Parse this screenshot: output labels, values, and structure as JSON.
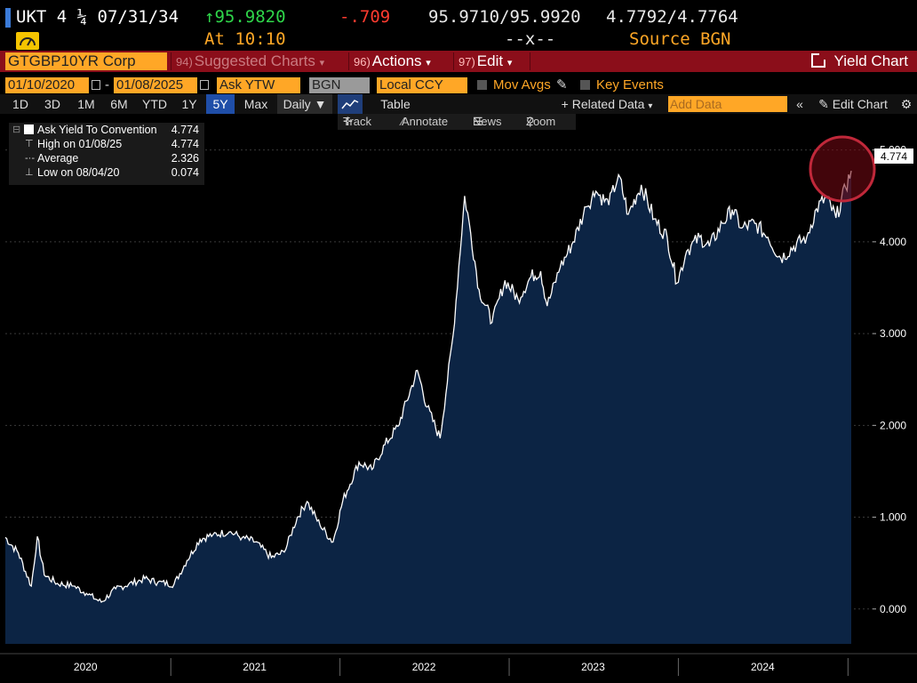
{
  "header": {
    "ticker": "UKT 4 ¼ 07/31/34",
    "price_change_arrow_price": "↑95.9820",
    "net_change": "-.709",
    "bid_ask_price": "95.9710/95.9920",
    "bid_ask_yield": "4.7792/4.7764",
    "time": "At 10:10",
    "spread": "--x--",
    "source": "Source BGN"
  },
  "toolbar": {
    "security": "GTGBP10YR Corp",
    "suggested": {
      "num": "94)",
      "label": "Suggested Charts"
    },
    "actions": {
      "num": "96)",
      "label": "Actions"
    },
    "edit": {
      "num": "97)",
      "label": "Edit"
    },
    "yield_chart": "Yield Chart"
  },
  "params": {
    "start_date": "01/10/2020",
    "end_date": "01/08/2025",
    "field": "Ask YTW",
    "source": "BGN",
    "currency": "Local CCY",
    "mov_avgs": "Mov Avgs",
    "key_events": "Key Events"
  },
  "ranges": [
    "1D",
    "3D",
    "1M",
    "6M",
    "YTD",
    "1Y",
    "5Y",
    "Max"
  ],
  "active_range": "5Y",
  "frequency": "Daily",
  "table_label": "Table",
  "related_data": "Related Data",
  "add_data_placeholder": "Add Data",
  "edit_chart": "Edit Chart",
  "tools": {
    "track": "Track",
    "annotate": "Annotate",
    "news": "News",
    "zoom": "Zoom"
  },
  "legend": {
    "series_name": "Ask Yield To Convention",
    "series_value": "4.774",
    "high_label": "High on 01/08/25",
    "high_value": "4.774",
    "avg_label": "Average",
    "avg_value": "2.326",
    "low_label": "Low on 08/04/20",
    "low_value": "0.074"
  },
  "last_value_tag": "4.774",
  "colors": {
    "fill": "#0c2444",
    "line": "#ffffff",
    "accent_orange": "#ffa726",
    "toolbar_red": "#8b0e1a",
    "highlight_circle": "#c0283a"
  },
  "chart_data": {
    "type": "area",
    "title": "",
    "xlabel": "",
    "ylabel": "",
    "ylim": [
      -0.38,
      5.2
    ],
    "yticks": [
      "5.000",
      "4.000",
      "3.000",
      "2.000",
      "1.000",
      "0.000"
    ],
    "ytick_values": [
      5,
      4,
      3,
      2,
      1,
      0
    ],
    "xticks": [
      "2020",
      "2021",
      "2022",
      "2023",
      "2024"
    ],
    "xtick_values": [
      "2020-07-01",
      "2021-07-01",
      "2022-07-01",
      "2023-07-01",
      "2024-07-01"
    ],
    "xlim": [
      "2020-01-10",
      "2025-01-08"
    ],
    "series": [
      {
        "values": [
          [
            "2020-01-10",
            0.78
          ],
          [
            "2020-02-07",
            0.61
          ],
          [
            "2020-03-06",
            0.25
          ],
          [
            "2020-03-19",
            0.79
          ],
          [
            "2020-04-03",
            0.37
          ],
          [
            "2020-05-01",
            0.28
          ],
          [
            "2020-06-05",
            0.25
          ],
          [
            "2020-07-03",
            0.17
          ],
          [
            "2020-08-04",
            0.074
          ],
          [
            "2020-09-04",
            0.22
          ],
          [
            "2020-10-02",
            0.27
          ],
          [
            "2020-11-06",
            0.33
          ],
          [
            "2020-12-04",
            0.29
          ],
          [
            "2021-01-08",
            0.27
          ],
          [
            "2021-02-05",
            0.53
          ],
          [
            "2021-03-05",
            0.76
          ],
          [
            "2021-04-02",
            0.81
          ],
          [
            "2021-05-07",
            0.84
          ],
          [
            "2021-06-04",
            0.78
          ],
          [
            "2021-07-02",
            0.73
          ],
          [
            "2021-08-06",
            0.56
          ],
          [
            "2021-09-03",
            0.62
          ],
          [
            "2021-10-01",
            1.0
          ],
          [
            "2021-10-22",
            1.17
          ],
          [
            "2021-11-19",
            0.91
          ],
          [
            "2021-12-17",
            0.73
          ],
          [
            "2022-01-07",
            1.18
          ],
          [
            "2022-02-11",
            1.6
          ],
          [
            "2022-03-11",
            1.52
          ],
          [
            "2022-04-08",
            1.79
          ],
          [
            "2022-05-06",
            1.99
          ],
          [
            "2022-06-17",
            2.6
          ],
          [
            "2022-07-08",
            2.2
          ],
          [
            "2022-08-05",
            1.86
          ],
          [
            "2022-09-02",
            2.98
          ],
          [
            "2022-09-27",
            4.5
          ],
          [
            "2022-10-07",
            4.2
          ],
          [
            "2022-10-28",
            3.48
          ],
          [
            "2022-11-25",
            3.12
          ],
          [
            "2022-12-23",
            3.58
          ],
          [
            "2023-01-20",
            3.38
          ],
          [
            "2023-02-17",
            3.62
          ],
          [
            "2023-03-10",
            3.68
          ],
          [
            "2023-03-24",
            3.3
          ],
          [
            "2023-04-21",
            3.72
          ],
          [
            "2023-05-19",
            4.0
          ],
          [
            "2023-06-16",
            4.38
          ],
          [
            "2023-07-07",
            4.55
          ],
          [
            "2023-08-04",
            4.4
          ],
          [
            "2023-08-25",
            4.73
          ],
          [
            "2023-09-15",
            4.3
          ],
          [
            "2023-10-13",
            4.62
          ],
          [
            "2023-11-10",
            4.25
          ],
          [
            "2023-12-08",
            4.05
          ],
          [
            "2023-12-29",
            3.55
          ],
          [
            "2024-01-19",
            3.9
          ],
          [
            "2024-02-16",
            4.05
          ],
          [
            "2024-03-08",
            3.95
          ],
          [
            "2024-04-05",
            4.2
          ],
          [
            "2024-04-26",
            4.35
          ],
          [
            "2024-05-17",
            4.15
          ],
          [
            "2024-06-14",
            4.2
          ],
          [
            "2024-07-12",
            4.05
          ],
          [
            "2024-08-09",
            3.82
          ],
          [
            "2024-09-06",
            3.95
          ],
          [
            "2024-10-04",
            4.05
          ],
          [
            "2024-10-25",
            4.36
          ],
          [
            "2024-11-15",
            4.48
          ],
          [
            "2024-12-06",
            4.26
          ],
          [
            "2024-12-27",
            4.59
          ],
          [
            "2025-01-08",
            4.774
          ]
        ]
      }
    ]
  }
}
